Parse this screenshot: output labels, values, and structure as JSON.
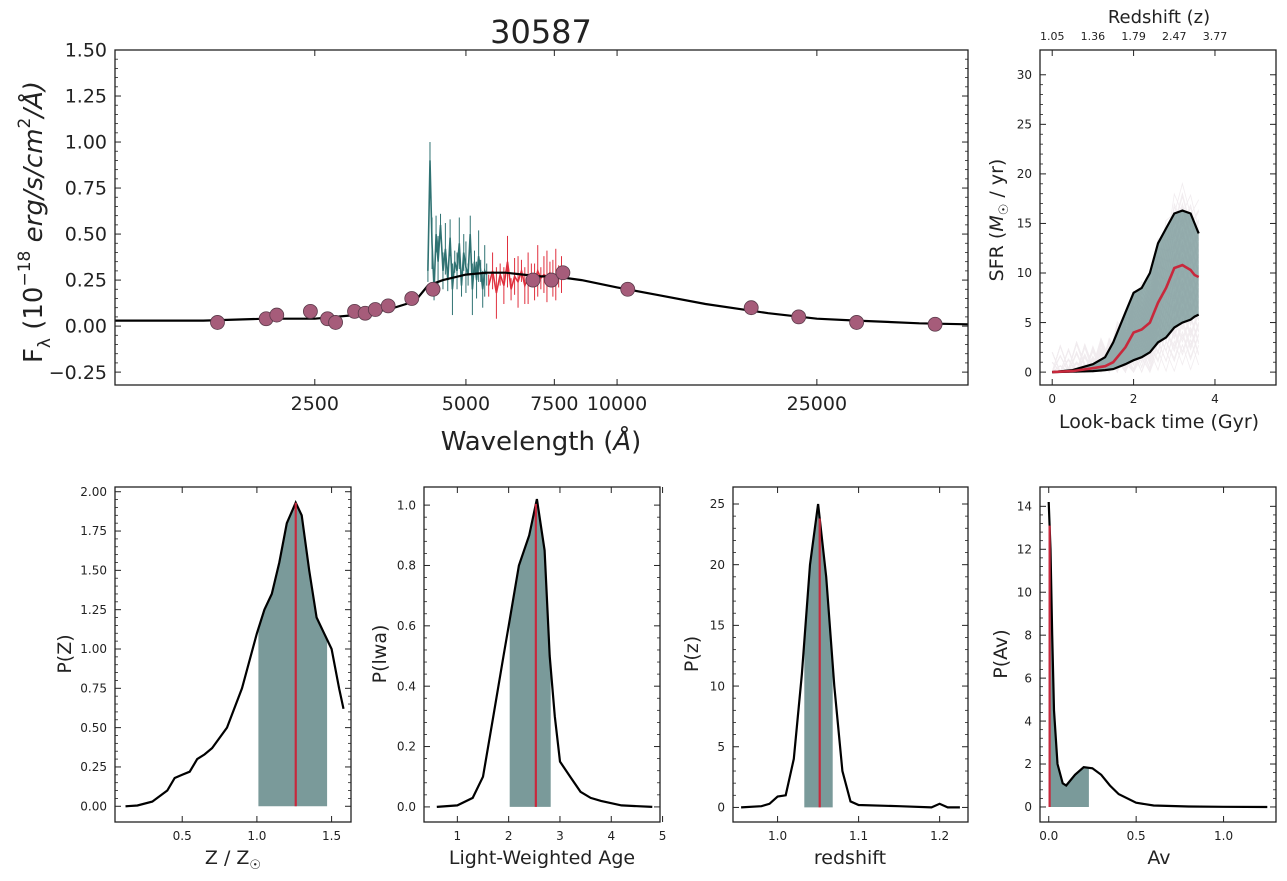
{
  "colors": {
    "spectrum_model": "#000000",
    "spec_teal": "#2f7272",
    "spec_red": "#e0303e",
    "photometry": "#a65c7a",
    "fill": "#7a9a9a",
    "median_line": "#c8283c",
    "sfr_traces": "#5a2040"
  },
  "chart_data": [
    {
      "type": "line",
      "title": "30587",
      "xlabel": "Wavelength (Å)",
      "ylabel": "F_λ (10^-18 erg/s/cm²/Å)",
      "ylabel_parts": {
        "f": "F",
        "sub": "λ",
        "pre": " (10",
        "exp": "−18",
        "units": " erg/s/cm",
        "sq": "2",
        "post": "/Å)"
      },
      "xlabel_parts": {
        "pre": "Wavelength (",
        "unit": "Å",
        "post": ")"
      },
      "xscale": "log",
      "xlim": [
        1000,
        50000
      ],
      "ylim": [
        -0.32,
        1.5
      ],
      "xtick_labels": [
        "2500",
        "5000",
        "7500",
        "10000",
        "25000"
      ],
      "xtick_values": [
        2500,
        5000,
        7500,
        10000,
        25000
      ],
      "ytick_labels": [
        "−0.25",
        "0.00",
        "0.25",
        "0.50",
        "0.75",
        "1.00",
        "1.25",
        "1.50"
      ],
      "ytick_values": [
        -0.25,
        0,
        0.25,
        0.5,
        0.75,
        1.0,
        1.25,
        1.5
      ],
      "series": [
        {
          "kind": "model",
          "x": [
            1000,
            1500,
            2000,
            2500,
            3000,
            3500,
            3800,
            4000,
            4200,
            4500,
            5000,
            5500,
            6000,
            6500,
            7000,
            7500,
            8500,
            10000,
            12000,
            15000,
            20000,
            25000,
            30000,
            40000,
            50000
          ],
          "y": [
            0.03,
            0.03,
            0.04,
            0.04,
            0.06,
            0.09,
            0.12,
            0.15,
            0.22,
            0.25,
            0.28,
            0.29,
            0.29,
            0.28,
            0.27,
            0.27,
            0.25,
            0.21,
            0.17,
            0.12,
            0.07,
            0.04,
            0.03,
            0.015,
            0.01
          ]
        },
        {
          "kind": "spectrum_teal",
          "x": [
            4200,
            4240,
            4280,
            4320,
            4360,
            4400,
            4450,
            4500,
            4550,
            4600,
            4650,
            4700,
            4750,
            4800,
            4850,
            4900,
            4950,
            5000,
            5050,
            5100,
            5150,
            5200,
            5250,
            5300,
            5350,
            5400,
            5450,
            5500
          ],
          "y": [
            0.3,
            0.9,
            0.45,
            0.2,
            0.5,
            0.35,
            0.55,
            0.3,
            0.42,
            0.25,
            0.48,
            0.2,
            0.35,
            0.3,
            0.45,
            0.22,
            0.4,
            0.32,
            0.28,
            0.5,
            0.2,
            0.35,
            0.25,
            0.38,
            0.3,
            0.2,
            0.3,
            0.28
          ]
        },
        {
          "kind": "spectrum_red",
          "x": [
            5550,
            5650,
            5750,
            5850,
            5950,
            6050,
            6150,
            6250,
            6350,
            6450,
            6550,
            6650,
            6750,
            6850,
            6950,
            7050,
            7150,
            7250,
            7350,
            7450,
            7550,
            7650,
            7750
          ],
          "y": [
            0.22,
            0.3,
            0.18,
            0.28,
            0.22,
            0.35,
            0.2,
            0.27,
            0.24,
            0.3,
            0.22,
            0.26,
            0.28,
            0.24,
            0.3,
            0.26,
            0.28,
            0.27,
            0.29,
            0.26,
            0.28,
            0.27,
            0.28
          ]
        },
        {
          "kind": "photometry",
          "x": [
            1600,
            2000,
            2100,
            2450,
            2650,
            2750,
            3000,
            3150,
            3300,
            3500,
            3900,
            4300,
            6800,
            7400,
            7800,
            10500,
            18500,
            23000,
            30000,
            43000
          ],
          "y": [
            0.02,
            0.04,
            0.06,
            0.08,
            0.04,
            0.02,
            0.08,
            0.07,
            0.09,
            0.11,
            0.15,
            0.2,
            0.25,
            0.25,
            0.29,
            0.2,
            0.1,
            0.05,
            0.02,
            0.01
          ]
        }
      ]
    },
    {
      "type": "area",
      "title": "Redshift (z)",
      "xlabel": "Look-back time (Gyr)",
      "ylabel": "SFR (M☉ / yr)",
      "ylabel_parts": {
        "pre": "SFR (",
        "m": "M",
        "sub": "☉",
        "post": " / yr)"
      },
      "xlim": [
        -0.3,
        5.5
      ],
      "ylim": [
        -1.3,
        32.5
      ],
      "xtick_labels": [
        "0",
        "2",
        "4"
      ],
      "xtick_values": [
        0,
        2,
        4
      ],
      "ytick_labels": [
        "0",
        "5",
        "10",
        "15",
        "20",
        "25",
        "30"
      ],
      "ytick_values": [
        0,
        5,
        10,
        15,
        20,
        25,
        30
      ],
      "top_axis_labels": [
        "1.05",
        "1.36",
        "1.79",
        "2.47",
        "3.77"
      ],
      "top_axis_positions": [
        0,
        1,
        2,
        3,
        4
      ],
      "series": [
        {
          "name": "upper",
          "x": [
            0,
            0.5,
            1.0,
            1.3,
            1.5,
            1.8,
            2.0,
            2.2,
            2.4,
            2.6,
            2.8,
            3.0,
            3.2,
            3.4,
            3.5,
            3.6
          ],
          "y": [
            0,
            0.2,
            0.8,
            1.5,
            3,
            6,
            8,
            8.5,
            10,
            13,
            14.5,
            16,
            16.3,
            16,
            15,
            14
          ]
        },
        {
          "name": "median",
          "x": [
            0,
            0.5,
            1.0,
            1.3,
            1.5,
            1.8,
            2.0,
            2.2,
            2.4,
            2.6,
            2.8,
            3.0,
            3.2,
            3.4,
            3.5,
            3.6
          ],
          "y": [
            0,
            0.1,
            0.4,
            0.6,
            1.0,
            2.5,
            4.0,
            4.3,
            5.0,
            7.0,
            8.5,
            10.5,
            10.8,
            10.3,
            9.8,
            9.6
          ]
        },
        {
          "name": "lower",
          "x": [
            0,
            0.5,
            1.0,
            1.3,
            1.5,
            1.8,
            2.0,
            2.2,
            2.4,
            2.6,
            2.8,
            3.0,
            3.2,
            3.4,
            3.5,
            3.6
          ],
          "y": [
            0,
            0.05,
            0.1,
            0.2,
            0.3,
            0.8,
            1.2,
            1.5,
            2.0,
            3.0,
            3.5,
            4.5,
            5.0,
            5.3,
            5.6,
            5.8
          ]
        }
      ]
    },
    {
      "type": "area",
      "xlabel": "Z / Z☉",
      "xlabel_parts": {
        "pre": "Z / Z",
        "sub": "☉"
      },
      "ylabel": "P(Z)",
      "xlim": [
        0.05,
        1.63
      ],
      "ylim": [
        -0.1,
        2.03
      ],
      "xtick_labels": [
        "0.5",
        "1.0",
        "1.5"
      ],
      "xtick_values": [
        0.5,
        1.0,
        1.5
      ],
      "ytick_labels": [
        "0.00",
        "0.25",
        "0.50",
        "0.75",
        "1.00",
        "1.25",
        "1.50",
        "1.75",
        "2.00"
      ],
      "ytick_values": [
        0,
        0.25,
        0.5,
        0.75,
        1.0,
        1.25,
        1.5,
        1.75,
        2.0
      ],
      "curve": {
        "x": [
          0.12,
          0.2,
          0.3,
          0.4,
          0.45,
          0.5,
          0.55,
          0.6,
          0.65,
          0.7,
          0.8,
          0.9,
          1.0,
          1.05,
          1.1,
          1.15,
          1.2,
          1.26,
          1.3,
          1.35,
          1.4,
          1.45,
          1.5,
          1.55,
          1.58
        ],
        "y": [
          0.0,
          0.005,
          0.03,
          0.1,
          0.18,
          0.2,
          0.22,
          0.3,
          0.33,
          0.37,
          0.5,
          0.75,
          1.1,
          1.25,
          1.35,
          1.55,
          1.8,
          1.93,
          1.85,
          1.5,
          1.2,
          1.1,
          1.0,
          0.75,
          0.62
        ]
      },
      "fill_range": [
        1.01,
        1.47
      ],
      "median": 1.26
    },
    {
      "type": "area",
      "xlabel": "Light-Weighted Age",
      "ylabel": "P(lwa)",
      "xlim": [
        0.35,
        4.95
      ],
      "ylim": [
        -0.05,
        1.06
      ],
      "xtick_labels": [
        "1",
        "2",
        "3",
        "4",
        "5"
      ],
      "xtick_values": [
        1,
        2,
        3,
        4,
        5
      ],
      "ytick_labels": [
        "0.0",
        "0.2",
        "0.4",
        "0.6",
        "0.8",
        "1.0"
      ],
      "ytick_values": [
        0,
        0.2,
        0.4,
        0.6,
        0.8,
        1.0
      ],
      "curve": {
        "x": [
          0.6,
          1.0,
          1.3,
          1.5,
          1.7,
          1.9,
          2.0,
          2.2,
          2.4,
          2.55,
          2.7,
          2.8,
          2.9,
          3.0,
          3.2,
          3.4,
          3.6,
          3.8,
          4.2,
          4.8
        ],
        "y": [
          0.0,
          0.005,
          0.03,
          0.1,
          0.3,
          0.5,
          0.6,
          0.8,
          0.9,
          1.02,
          0.85,
          0.5,
          0.3,
          0.15,
          0.1,
          0.05,
          0.03,
          0.02,
          0.005,
          0.0
        ]
      },
      "fill_range": [
        2.02,
        2.82
      ],
      "median": 2.53
    },
    {
      "type": "area",
      "xlabel": "redshift",
      "ylabel": "P(z)",
      "xlim": [
        0.945,
        1.235
      ],
      "ylim": [
        -1.2,
        26.4
      ],
      "xtick_labels": [
        "1.0",
        "1.1",
        "1.2"
      ],
      "xtick_values": [
        1.0,
        1.1,
        1.2
      ],
      "ytick_labels": [
        "0",
        "5",
        "10",
        "15",
        "20",
        "25"
      ],
      "ytick_values": [
        0,
        5,
        10,
        15,
        20,
        25
      ],
      "curve": {
        "x": [
          0.955,
          0.98,
          0.99,
          1.0,
          1.01,
          1.02,
          1.03,
          1.04,
          1.05,
          1.06,
          1.07,
          1.08,
          1.09,
          1.1,
          1.15,
          1.19,
          1.2,
          1.21,
          1.225
        ],
        "y": [
          0.0,
          0.1,
          0.3,
          0.9,
          1.0,
          4.0,
          11.0,
          20.0,
          25.0,
          19.0,
          10.0,
          3.0,
          0.5,
          0.2,
          0.1,
          0.0,
          0.3,
          0.0,
          0.0
        ]
      },
      "fill_range": [
        1.033,
        1.068
      ],
      "median": 1.052
    },
    {
      "type": "area",
      "xlabel": "Av",
      "ylabel": "P(Av)",
      "xlim": [
        -0.05,
        1.3
      ],
      "ylim": [
        -0.7,
        14.9
      ],
      "xtick_labels": [
        "0.0",
        "0.5",
        "1.0"
      ],
      "xtick_values": [
        0.0,
        0.5,
        1.0
      ],
      "ytick_labels": [
        "0",
        "2",
        "4",
        "6",
        "8",
        "10",
        "12",
        "14"
      ],
      "ytick_values": [
        0,
        2,
        4,
        6,
        8,
        10,
        12,
        14
      ],
      "curve": {
        "x": [
          0.0,
          0.01,
          0.02,
          0.03,
          0.05,
          0.08,
          0.1,
          0.15,
          0.2,
          0.25,
          0.3,
          0.35,
          0.4,
          0.5,
          0.6,
          0.8,
          1.0,
          1.25
        ],
        "y": [
          14.2,
          12.0,
          8.0,
          4.5,
          2.0,
          1.1,
          1.0,
          1.5,
          1.85,
          1.8,
          1.5,
          1.0,
          0.6,
          0.2,
          0.07,
          0.02,
          0.01,
          0.0
        ]
      },
      "fill_range": [
        0.0,
        0.23
      ],
      "median": 0.005
    }
  ]
}
